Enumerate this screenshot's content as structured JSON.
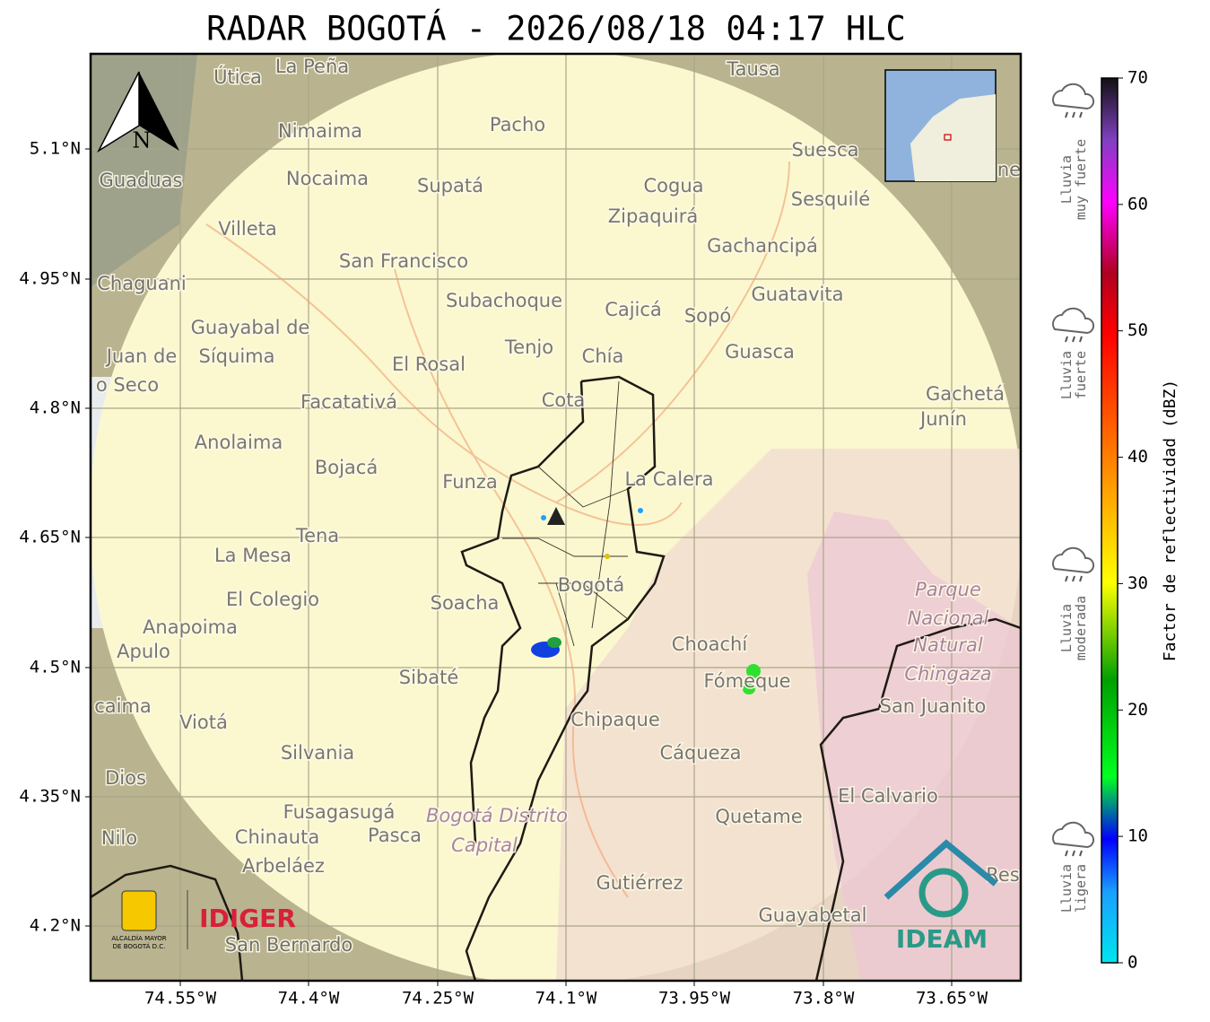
{
  "header": {
    "title": "RADAR BOGOTÁ - 2026/08/18 04:17 HLC"
  },
  "map": {
    "lon_ticks": [
      "74.55°W",
      "74.4°W",
      "74.25°W",
      "74.1°W",
      "73.95°W",
      "73.8°W",
      "73.65°W"
    ],
    "lat_ticks": [
      "5.1°N",
      "4.95°N",
      "4.8°N",
      "4.65°N",
      "4.5°N",
      "4.35°N",
      "4.2°N"
    ],
    "north": "N",
    "places": [
      "La Peña",
      "Útica",
      "Tausa",
      "Pacho",
      "Nimaima",
      "Guaduas",
      "Nocaima",
      "Supatá",
      "Cogua",
      "Suesca",
      "Sesquilé",
      "Zipaquirá",
      "Villeta",
      "Gachancipá",
      "San Francisco",
      "Chaguani",
      "Guatavita",
      "Subachoque",
      "Cajicá",
      "Sopó",
      "Guayabal de",
      "Síquima",
      "Tenjo",
      "Chía",
      "Guasca",
      "Juan de",
      "El Rosal",
      "o Seco",
      "Facatativá",
      "Cota",
      "Gachetá",
      "Junín",
      "Anolaima",
      "Bojacá",
      "Funza",
      "La Calera",
      "Tena",
      "La Mesa",
      "Bogotá",
      "Soacha",
      "El Colegio",
      "Anapoima",
      "Apulo",
      "Choachí",
      "Sibaté",
      "Fómeque",
      "San Juanito",
      "caima",
      "Viotá",
      "Chipaque",
      "Silvania",
      "Cáqueza",
      "Dios",
      "El Calvario",
      "Fusagasugá",
      "Quetame",
      "Nilo",
      "Chinauta",
      "Pasca",
      "Arbeláez",
      "Gutiérrez",
      "Guayabetal",
      "San Bernardo",
      "Res",
      "ne"
    ],
    "park": [
      "Parque",
      "Nacional",
      "Natural",
      "Chingaza"
    ],
    "district": [
      "Bogotá Distrito",
      "Capital"
    ]
  },
  "logos": {
    "alcaldia": [
      "ALCALDÍA MAYOR",
      "DE BOGOTÁ D.C."
    ],
    "idiger": "IDIGER",
    "ideam": "IDEAM"
  },
  "colorbar": {
    "label": "Factor de reflectividad (dBZ)",
    "ticks": [
      0,
      10,
      20,
      30,
      40,
      50,
      60,
      70
    ]
  },
  "rain_levels": [
    [
      "Lluvia",
      "muy fuerte"
    ],
    [
      "Lluvia",
      "fuerte"
    ],
    [
      "Lluvia",
      "moderada"
    ],
    [
      "Lluvia",
      "ligera"
    ]
  ]
}
